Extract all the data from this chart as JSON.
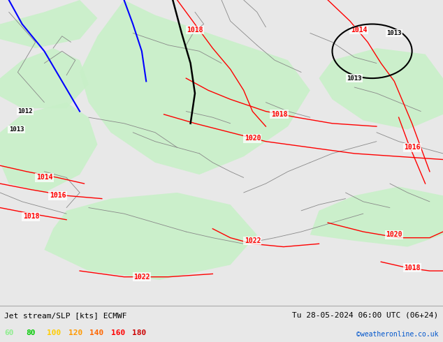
{
  "title_left": "Jet stream/SLP [kts] ECMWF",
  "title_right": "Tu 28-05-2024 06:00 UTC (06+24)",
  "copyright": "©weatheronline.co.uk",
  "legend_values": [
    "60",
    "80",
    "100",
    "120",
    "140",
    "160",
    "180"
  ],
  "legend_colors": [
    "#90ee90",
    "#00cc00",
    "#ffcc00",
    "#ff9900",
    "#ff6600",
    "#ff0000",
    "#cc0000"
  ],
  "bg_color": "#e8e8e8",
  "map_bg": "#d0d0d0",
  "isobar_color": "#ff0000",
  "figsize": [
    6.34,
    4.9
  ],
  "dpi": 100
}
